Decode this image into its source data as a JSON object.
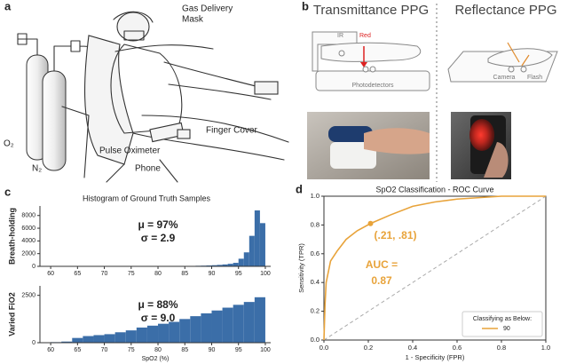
{
  "figure": {
    "panel_a": {
      "letter": "a",
      "mask_label": [
        "Gas Delivery",
        "Mask"
      ],
      "o2_label": "O₂",
      "n2_label": "N₂",
      "finger_cover_label": "Finger Cover",
      "oximeter_label": "Pulse Oximeter",
      "phone_label": "Phone"
    },
    "panel_b": {
      "letter": "b",
      "left_title": "Transmittance PPG",
      "right_title": "Reflectance PPG",
      "ir_label": "IR",
      "red_label": "Red",
      "detector_label": "Photodetectors",
      "camera_label": "Camera",
      "flash_label": "Flash"
    },
    "panel_c": {
      "letter": "c",
      "title": "Histogram of Ground Truth Samples"
    },
    "panel_d": {
      "letter": "d"
    }
  },
  "chart_data": [
    {
      "type": "histogram",
      "ylabel": "Breath-holding",
      "annotations": [
        "μ = 97%",
        "σ = 2.9"
      ],
      "color": "#3b6ea8",
      "bins": [
        80,
        81,
        82,
        83,
        84,
        85,
        86,
        87,
        88,
        89,
        90,
        91,
        92,
        93,
        94,
        95,
        96,
        97,
        98,
        99,
        100
      ],
      "values": [
        10,
        15,
        20,
        30,
        40,
        55,
        70,
        90,
        110,
        140,
        180,
        230,
        300,
        400,
        550,
        1200,
        2200,
        4800,
        8800,
        6800
      ],
      "xlim": [
        58,
        101
      ],
      "xticks": [
        60,
        65,
        70,
        75,
        80,
        85,
        90,
        95,
        100
      ],
      "ylim": [
        0,
        9500
      ],
      "yticks": [
        0,
        2000,
        4000,
        6000,
        8000
      ]
    },
    {
      "type": "histogram",
      "ylabel": "Varied FiO2",
      "xlabel": "SpO2 (%)",
      "annotations": [
        "μ = 88%",
        "σ = 9.0"
      ],
      "color": "#3b6ea8",
      "bins": [
        60,
        62,
        64,
        66,
        68,
        70,
        72,
        74,
        76,
        78,
        80,
        82,
        84,
        86,
        88,
        90,
        92,
        94,
        96,
        98,
        100
      ],
      "values": [
        30,
        60,
        250,
        350,
        400,
        450,
        550,
        650,
        800,
        900,
        1000,
        1100,
        1250,
        1400,
        1550,
        1700,
        1850,
        2000,
        2150,
        2400
      ],
      "xlim": [
        58,
        101
      ],
      "xticks": [
        60,
        65,
        70,
        75,
        80,
        85,
        90,
        95,
        100
      ],
      "ylim": [
        0,
        3000
      ],
      "yticks": [
        0,
        2500
      ]
    },
    {
      "type": "line",
      "title": "SpO2 Classification - ROC Curve",
      "xlabel": "1 - Specificity (FPR)",
      "ylabel": "Sensitivity (TPR)",
      "x": [
        0,
        0.005,
        0.01,
        0.03,
        0.06,
        0.1,
        0.15,
        0.21,
        0.3,
        0.4,
        0.5,
        0.6,
        0.7,
        0.8,
        1
      ],
      "series": [
        {
          "name": "90",
          "color": "#e8a33a",
          "values": [
            0,
            0.25,
            0.4,
            0.55,
            0.62,
            0.7,
            0.76,
            0.81,
            0.87,
            0.93,
            0.96,
            0.98,
            0.99,
            1,
            1
          ]
        }
      ],
      "highlight": {
        "x": 0.21,
        "y": 0.81,
        "label": "(.21, .81)"
      },
      "annotation": [
        "AUC =",
        "0.87"
      ],
      "legend_title": "Classifying as Below:",
      "legend": "lower right",
      "xlim": [
        0,
        1
      ],
      "ylim": [
        0,
        1
      ],
      "xticks": [
        {
          "value": 0,
          "label": "0.0"
        },
        0.2,
        0.4,
        0.6,
        0.8,
        {
          "value": 1,
          "label": "1.0"
        }
      ],
      "yticks": [
        {
          "value": 0,
          "label": "0.0"
        },
        0.2,
        0.4,
        0.6,
        0.8,
        {
          "value": 1,
          "label": "1.0"
        }
      ]
    }
  ]
}
